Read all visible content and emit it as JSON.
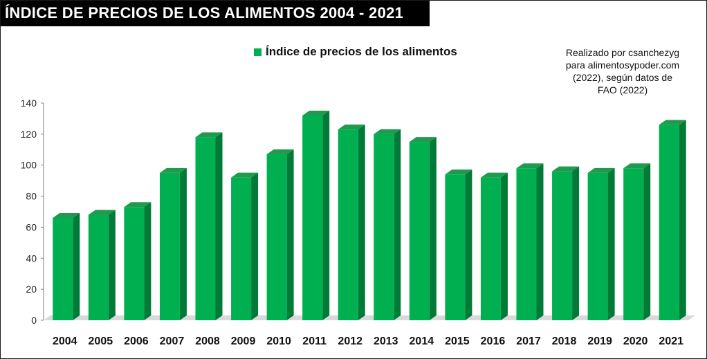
{
  "title": "ÍNDICE DE PRECIOS DE LOS ALIMENTOS 2004 - 2021",
  "credit_lines": [
    "Realizado por csanchezyg",
    "para alimentosypoder.com",
    "(2022), según datos de",
    "FAO (2022)"
  ],
  "colors": {
    "bar_front": "#00b050",
    "bar_side": "#007a37",
    "bar_top": "#1f9a4f",
    "floor": "#d9d9d9",
    "axis": "#808080"
  },
  "chart_data": {
    "type": "bar",
    "title": "ÍNDICE DE PRECIOS DE LOS ALIMENTOS 2004 - 2021",
    "xlabel": "",
    "ylabel": "",
    "ylim": [
      0,
      140
    ],
    "yticks": [
      0,
      20,
      40,
      60,
      80,
      100,
      120,
      140
    ],
    "grid": false,
    "legend_position": "top-center",
    "bar_style": "3d-column",
    "categories": [
      "2004",
      "2005",
      "2006",
      "2007",
      "2008",
      "2009",
      "2010",
      "2011",
      "2012",
      "2013",
      "2014",
      "2015",
      "2016",
      "2017",
      "2018",
      "2019",
      "2020",
      "2021"
    ],
    "series": [
      {
        "name": "Índice de precios de los alimentos",
        "values": [
          66,
          68,
          73,
          95,
          118,
          92,
          107,
          132,
          123,
          120,
          115,
          94,
          92,
          98,
          96,
          95,
          98,
          126
        ]
      }
    ]
  }
}
